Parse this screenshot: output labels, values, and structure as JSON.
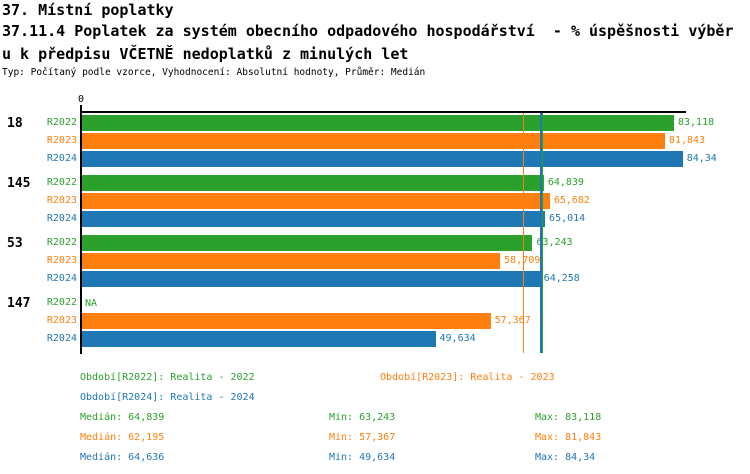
{
  "header": {
    "line1": "37. Místní poplatky",
    "line2": "37.11.4 Poplatek za systém obecního odpadového hospodářství  - % úspěšnosti výběr",
    "line3": "u k předpisu VČETNĚ nedoplatků z minulých let",
    "line4": "Typ: Počítaný podle vzorce, Vyhodnocení: Absolutní hodnoty, Průměr: Medián"
  },
  "colors": {
    "green": "#2ca02c",
    "orange": "#ff7f0e",
    "blue": "#1f77b4",
    "axis": "#000000",
    "background": "#ffffff"
  },
  "chart_data": {
    "type": "bar",
    "orientation": "horizontal",
    "title": "37.11.4 Poplatek za systém obecního odpadového hospodářství - % úspěšnosti výběru k předpisu VČETNĚ nedoplatků z minulých let",
    "xlabel": "",
    "ylabel": "",
    "x_ticks": [
      "0"
    ],
    "xlim": [
      0,
      85
    ],
    "grid": false,
    "series_labels": [
      "R2022",
      "R2023",
      "R2024"
    ],
    "series_colors": [
      "#2ca02c",
      "#ff7f0e",
      "#1f77b4"
    ],
    "groups": [
      {
        "label": "18",
        "values": [
          83.118,
          81.843,
          84.34
        ],
        "value_labels": [
          "83,118",
          "81,843",
          "84,34"
        ]
      },
      {
        "label": "145",
        "values": [
          64.839,
          65.682,
          65.014
        ],
        "value_labels": [
          "64,839",
          "65,682",
          "65,014"
        ]
      },
      {
        "label": "53",
        "values": [
          63.243,
          58.709,
          64.258
        ],
        "value_labels": [
          "63,243",
          "58,709",
          "64,258"
        ]
      },
      {
        "label": "147",
        "values": [
          null,
          57.367,
          49.634
        ],
        "value_labels": [
          "NA",
          "57,367",
          "49,634"
        ]
      }
    ],
    "median_lines": [
      {
        "name": "median-R2022",
        "value": 64.839,
        "color": "#2ca02c"
      },
      {
        "name": "median-R2024",
        "value": 64.636,
        "color": "#1f77b4"
      },
      {
        "name": "median-R2023",
        "value": 62.195,
        "color": "#ff7f0e"
      }
    ]
  },
  "legend": {
    "periods": [
      {
        "label": "Období[R2022]: Realita - 2022",
        "color": "#2ca02c"
      },
      {
        "label": "Období[R2023]: Realita - 2023",
        "color": "#ff7f0e"
      },
      {
        "label": "Období[R2024]: Realita - 2024",
        "color": "#1f77b4"
      }
    ],
    "stats": [
      {
        "color": "#2ca02c",
        "median": "Medián: 64,839",
        "min": "Min: 63,243",
        "max": "Max: 83,118"
      },
      {
        "color": "#ff7f0e",
        "median": "Medián: 62,195",
        "min": "Min: 57,367",
        "max": "Max: 81,843"
      },
      {
        "color": "#1f77b4",
        "median": "Medián: 64,636",
        "min": "Min: 49,634",
        "max": "Max: 84,34"
      }
    ]
  }
}
